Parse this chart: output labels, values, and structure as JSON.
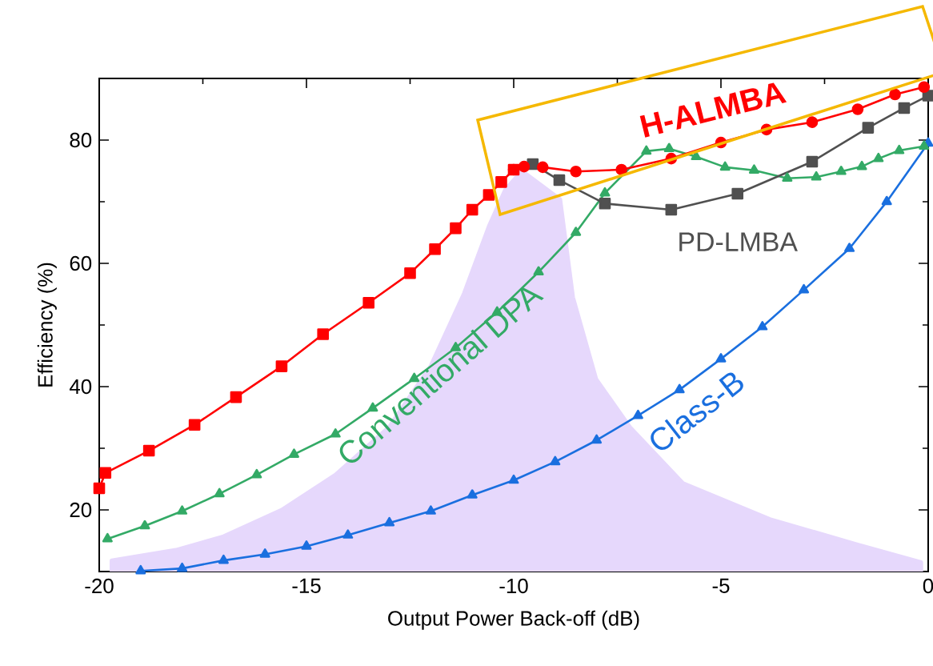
{
  "chart_data": {
    "type": "line",
    "xlabel": "Output Power Back-off (dB)",
    "ylabel": "Efficiency (%)",
    "xlim": [
      -20,
      0
    ],
    "ylim": [
      10,
      90
    ],
    "xticks": [
      -20,
      -15,
      -10,
      -5,
      0
    ],
    "yticks": [
      20,
      40,
      60,
      80
    ],
    "grid": false,
    "legend": false,
    "line_style": "solid",
    "series": [
      {
        "type": "area",
        "color": "#e6d8fc",
        "x": [
          -19.7,
          -18.15,
          -17.0,
          -15.6,
          -14.3,
          -13.0,
          -12.0,
          -11.2,
          -10.6,
          -10.2,
          -9.8,
          -8.88,
          -8.57,
          -8.01,
          -7.18,
          -5.91,
          -3.82,
          -1.72,
          -0.17
        ],
        "values": [
          11.8,
          13.5,
          15.7,
          20.0,
          25.7,
          33.5,
          43.4,
          55.1,
          66,
          72,
          75,
          70.4,
          54.5,
          41.2,
          33.3,
          24.3,
          18.5,
          14.4,
          11.5
        ]
      },
      {
        "name": "Class-B",
        "color": "#1a6fdf",
        "marker": "triangle",
        "x": [
          -19.0,
          -18.0,
          -17.0,
          -16.0,
          -15.0,
          -14.0,
          -13.0,
          -12.0,
          -11.0,
          -10.0,
          -9.0,
          -8.0,
          -7.0,
          -6.0,
          -5.0,
          -4.0,
          -3.0,
          -1.9,
          -1.0,
          0
        ],
        "values": [
          10.1,
          10.5,
          11.8,
          12.8,
          14.1,
          15.9,
          17.9,
          19.8,
          22.4,
          24.8,
          27.8,
          31.3,
          35.3,
          39.5,
          44.5,
          49.7,
          55.7,
          62.4,
          70.0,
          79.5
        ]
      },
      {
        "name": "Conventional DPA",
        "color": "#33aa66",
        "marker": "triangle",
        "x": [
          -19.8,
          -18.9,
          -18.0,
          -17.1,
          -16.2,
          -15.3,
          -14.3,
          -13.4,
          -12.4,
          -11.4,
          -10.4,
          -9.4,
          -8.5,
          -7.8,
          -6.8,
          -6.25,
          -5.6,
          -4.9,
          -4.2,
          -3.4,
          -2.7,
          -2.1,
          -1.6,
          -1.2,
          -0.7,
          -0.1
        ],
        "values": [
          15.3,
          17.4,
          19.8,
          22.6,
          25.7,
          29.0,
          32.3,
          36.5,
          41.3,
          46.3,
          52.1,
          58.6,
          65.0,
          71.4,
          78.2,
          78.6,
          77.3,
          75.6,
          75.1,
          73.8,
          74.0,
          74.9,
          75.7,
          77.0,
          78.3,
          79.0
        ]
      },
      {
        "name": "PD-LMBA",
        "color": "#505050",
        "marker": "square",
        "x": [
          -9.54,
          -8.9,
          -7.8,
          -6.2,
          -4.6,
          -2.8,
          -1.45,
          -0.58,
          0
        ],
        "values": [
          76.1,
          73.5,
          69.7,
          68.7,
          71.3,
          76.5,
          82.0,
          85.2,
          87.2
        ]
      },
      {
        "color": "#ff0000",
        "marker": "square",
        "x": [
          -20,
          -19.85,
          -18.8,
          -17.7,
          -16.7,
          -15.6,
          -14.6,
          -13.5,
          -12.5,
          -11.9,
          -11.4,
          -11.0,
          -10.6,
          -10.3,
          -10.0
        ],
        "values": [
          23.5,
          26.0,
          29.6,
          33.8,
          38.3,
          43.3,
          48.5,
          53.6,
          58.4,
          62.3,
          65.7,
          68.7,
          71.1,
          73.2,
          75.2
        ]
      },
      {
        "name": "H-ALMBA",
        "color": "#ff0000",
        "marker": "circle",
        "x": [
          -10.0,
          -9.75,
          -9.3,
          -8.5,
          -7.4,
          -6.2,
          -5.0,
          -3.9,
          -2.8,
          -1.7,
          -0.8,
          -0.1
        ],
        "values": [
          75.2,
          75.7,
          75.6,
          74.9,
          75.2,
          77.0,
          79.6,
          81.7,
          82.9,
          85.0,
          87.4,
          88.6
        ]
      }
    ]
  }
}
